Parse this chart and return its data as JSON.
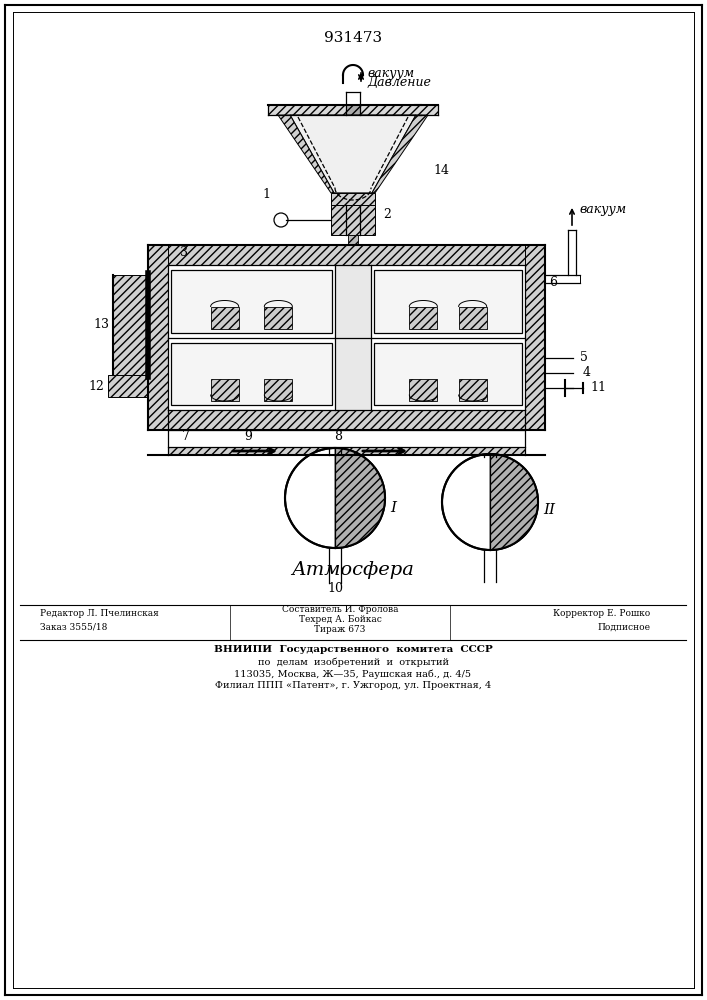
{
  "title": "931473",
  "background_color": "#ffffff",
  "line_color": "#000000",
  "label_vacuum_top1": "вакуум",
  "label_pressure_top": "Давление",
  "label_vacuum_right": "вакуум",
  "label_atmosphere": "Атмосфера",
  "footer_left1": "Редактор Л. Пчелинская",
  "footer_left2": "Заказ 3555/18",
  "footer_center1": "Составитель И. Фролова",
  "footer_center2": "Техред А. Бойкас",
  "footer_center3": "Тираж 673",
  "footer_right1": "Корректор Е. Рошко",
  "footer_right2": "Подписное",
  "footer_vniip1": "ВНИИПИ  Государственного  комитета  СССР",
  "footer_vniip2": "по  делам  изобретений  и  открытий",
  "footer_vniip3": "113035, Москва, Ж—35, Раушская наб., д. 4/5",
  "footer_vniip4": "Филиал ППП «Патент», г. Ужгород, ул. Проектная, 4"
}
